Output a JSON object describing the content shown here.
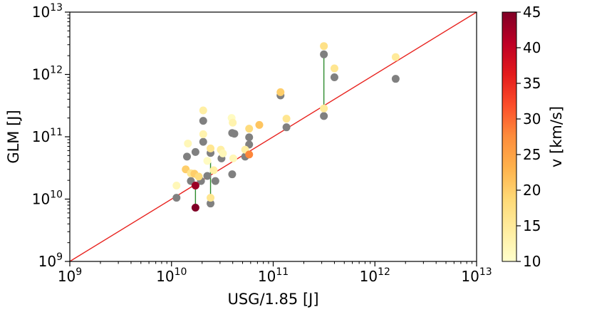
{
  "chart_data": {
    "type": "scatter",
    "title": "",
    "xlabel": "USG/1.85 [J]",
    "ylabel": "GLM [J]",
    "x_scale": "log",
    "y_scale": "log",
    "xlim": [
      1000000000.0,
      10000000000000.0
    ],
    "ylim": [
      1000000000.0,
      10000000000000.0
    ],
    "x_tick_labels": [
      {
        "base": "10",
        "exp": "9",
        "value": 1000000000.0
      },
      {
        "base": "10",
        "exp": "10",
        "value": 10000000000.0
      },
      {
        "base": "10",
        "exp": "11",
        "value": 100000000000.0
      },
      {
        "base": "10",
        "exp": "12",
        "value": 1000000000000.0
      },
      {
        "base": "10",
        "exp": "13",
        "value": 10000000000000.0
      }
    ],
    "y_tick_labels": [
      {
        "base": "10",
        "exp": "9",
        "value": 1000000000.0
      },
      {
        "base": "10",
        "exp": "10",
        "value": 10000000000.0
      },
      {
        "base": "10",
        "exp": "11",
        "value": 100000000000.0
      },
      {
        "base": "10",
        "exp": "12",
        "value": 1000000000000.0
      },
      {
        "base": "10",
        "exp": "13",
        "value": 10000000000000.0
      }
    ],
    "grid": false,
    "reference_line": {
      "from": [
        1000000000.0,
        1000000000.0
      ],
      "to": [
        10000000000000.0,
        10000000000000.0
      ],
      "color": "#e8231f"
    },
    "colorbar": {
      "label": "v [km/s]",
      "min": 10,
      "max": 45,
      "ticks": [
        "10",
        "15",
        "20",
        "25",
        "30",
        "35",
        "40",
        "45"
      ],
      "colormap": "YlOrRd"
    },
    "gray_color": "#808080",
    "connector_color": "#2e8b2e",
    "connectors": [
      {
        "x": 17200000000.0,
        "y1": 7300000000.0,
        "y2": 16500000000.0
      },
      {
        "x": 24200000000.0,
        "y1": 10500000000.0,
        "y2": 39000000000.0
      },
      {
        "x": 315000000000.0,
        "y1": 215000000000.0,
        "y2": 2100000000000.0
      }
    ],
    "gray_points": [
      {
        "x": 11200000000.0,
        "y": 10500000000.0
      },
      {
        "x": 14200000000.0,
        "y": 48000000000.0
      },
      {
        "x": 15500000000.0,
        "y": 19500000000.0
      },
      {
        "x": 17200000000.0,
        "y": 57000000000.0
      },
      {
        "x": 19500000000.0,
        "y": 19500000000.0
      },
      {
        "x": 20500000000.0,
        "y": 83000000000.0
      },
      {
        "x": 20500000000.0,
        "y": 180000000000.0
      },
      {
        "x": 22500000000.0,
        "y": 23500000000.0
      },
      {
        "x": 24200000000.0,
        "y": 8500000000.0
      },
      {
        "x": 24200000000.0,
        "y": 55000000000.0
      },
      {
        "x": 27000000000.0,
        "y": 19500000000.0
      },
      {
        "x": 31000000000.0,
        "y": 45000000000.0
      },
      {
        "x": 39500000000.0,
        "y": 25000000000.0
      },
      {
        "x": 39500000000.0,
        "y": 115000000000.0
      },
      {
        "x": 41500000000.0,
        "y": 112000000000.0
      },
      {
        "x": 53000000000.0,
        "y": 48000000000.0
      },
      {
        "x": 58000000000.0,
        "y": 98000000000.0
      },
      {
        "x": 58000000000.0,
        "y": 75000000000.0
      },
      {
        "x": 118000000000.0,
        "y": 460000000000.0
      },
      {
        "x": 135000000000.0,
        "y": 142000000000.0
      },
      {
        "x": 315000000000.0,
        "y": 215000000000.0
      },
      {
        "x": 315000000000.0,
        "y": 2100000000000.0
      },
      {
        "x": 400000000000.0,
        "y": 900000000000.0
      },
      {
        "x": 1600000000000.0,
        "y": 850000000000.0
      }
    ],
    "colored_points": [
      {
        "x": 11200000000.0,
        "y": 16500000000.0,
        "v": 12
      },
      {
        "x": 13800000000.0,
        "y": 30000000000.0,
        "v": 20
      },
      {
        "x": 14500000000.0,
        "y": 78000000000.0,
        "v": 12
      },
      {
        "x": 15500000000.0,
        "y": 26000000000.0,
        "v": 16
      },
      {
        "x": 16800000000.0,
        "y": 25500000000.0,
        "v": 20
      },
      {
        "x": 17200000000.0,
        "y": 16500000000.0,
        "v": 43
      },
      {
        "x": 17200000000.0,
        "y": 7300000000.0,
        "v": 45
      },
      {
        "x": 18500000000.0,
        "y": 23000000000.0,
        "v": 18
      },
      {
        "x": 20500000000.0,
        "y": 265000000000.0,
        "v": 14
      },
      {
        "x": 20500000000.0,
        "y": 110000000000.0,
        "v": 13
      },
      {
        "x": 22500000000.0,
        "y": 41000000000.0,
        "v": 11
      },
      {
        "x": 24200000000.0,
        "y": 65000000000.0,
        "v": 16
      },
      {
        "x": 24200000000.0,
        "y": 10500000000.0,
        "v": 16
      },
      {
        "x": 26000000000.0,
        "y": 29000000000.0,
        "v": 14
      },
      {
        "x": 30500000000.0,
        "y": 62000000000.0,
        "v": 14
      },
      {
        "x": 32000000000.0,
        "y": 54000000000.0,
        "v": 12
      },
      {
        "x": 39000000000.0,
        "y": 200000000000.0,
        "v": 11
      },
      {
        "x": 40000000000.0,
        "y": 168000000000.0,
        "v": 13
      },
      {
        "x": 40500000000.0,
        "y": 45000000000.0,
        "v": 12
      },
      {
        "x": 53000000000.0,
        "y": 62000000000.0,
        "v": 14
      },
      {
        "x": 58000000000.0,
        "y": 135000000000.0,
        "v": 18
      },
      {
        "x": 58000000000.0,
        "y": 52000000000.0,
        "v": 28
      },
      {
        "x": 73000000000.0,
        "y": 155000000000.0,
        "v": 21
      },
      {
        "x": 118000000000.0,
        "y": 520000000000.0,
        "v": 20
      },
      {
        "x": 135000000000.0,
        "y": 195000000000.0,
        "v": 16
      },
      {
        "x": 315000000000.0,
        "y": 285000000000.0,
        "v": 15
      },
      {
        "x": 315000000000.0,
        "y": 2850000000000.0,
        "v": 17
      },
      {
        "x": 400000000000.0,
        "y": 1250000000000.0,
        "v": 16
      },
      {
        "x": 1600000000000.0,
        "y": 1900000000000.0,
        "v": 15
      }
    ]
  }
}
